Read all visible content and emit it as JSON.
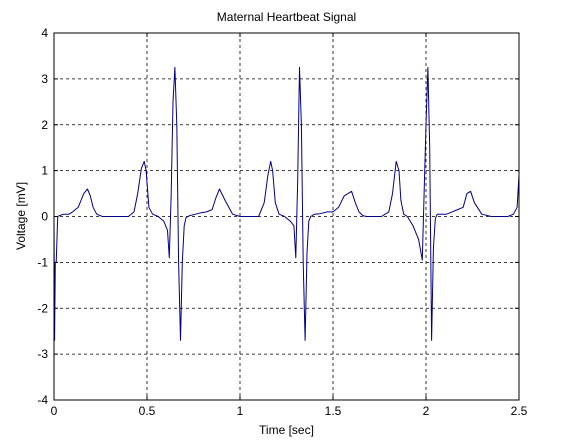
{
  "chart_data": {
    "type": "line",
    "title": "Maternal Heartbeat Signal",
    "xlabel": "Time [sec]",
    "ylabel": "Voltage [mV]",
    "xlim": [
      0,
      2.5
    ],
    "ylim": [
      -4,
      4
    ],
    "xticks": [
      0,
      0.5,
      1,
      1.5,
      2,
      2.5
    ],
    "xtick_labels": [
      "0",
      "0.5",
      "1",
      "1.5",
      "2",
      "2.5"
    ],
    "yticks": [
      -4,
      -3,
      -2,
      -1,
      0,
      1,
      2,
      3,
      4
    ],
    "ytick_labels": [
      "-4",
      "-3",
      "-2",
      "-1",
      "0",
      "1",
      "2",
      "3",
      "4"
    ],
    "grid": true,
    "colors": {
      "line": "#00008b",
      "grid": "#000000",
      "axes": "#000000"
    },
    "series": [
      {
        "x": [
          0,
          0.003,
          0.007,
          0.012,
          0.02,
          0.03,
          0.05,
          0.08,
          0.1,
          0.13,
          0.16,
          0.18,
          0.195,
          0.21,
          0.23,
          0.26,
          0.3,
          0.35,
          0.4,
          0.43,
          0.45,
          0.47,
          0.485,
          0.495,
          0.51,
          0.53,
          0.56,
          0.59,
          0.61,
          0.62,
          0.63,
          0.64,
          0.65,
          0.66,
          0.67,
          0.68,
          0.69,
          0.7,
          0.71,
          0.73,
          0.76,
          0.79,
          0.82,
          0.85,
          0.87,
          0.89,
          0.92,
          0.96,
          1.0,
          1.05,
          1.1,
          1.13,
          1.15,
          1.165,
          1.175,
          1.19,
          1.21,
          1.24,
          1.27,
          1.29,
          1.3,
          1.31,
          1.32,
          1.33,
          1.34,
          1.35,
          1.36,
          1.37,
          1.38,
          1.4,
          1.43,
          1.47,
          1.5,
          1.53,
          1.56,
          1.6,
          1.62,
          1.64,
          1.66,
          1.68,
          1.72,
          1.76,
          1.8,
          1.82,
          1.84,
          1.855,
          1.865,
          1.88,
          1.9,
          1.93,
          1.96,
          1.98,
          1.99,
          2.0,
          2.01,
          2.02,
          2.03,
          2.04,
          2.05,
          2.06,
          2.08,
          2.11,
          2.14,
          2.17,
          2.2,
          2.22,
          2.24,
          2.26,
          2.3,
          2.35,
          2.4,
          2.44,
          2.47,
          2.49,
          2.5
        ],
        "y": [
          -0.1,
          -2.7,
          -1.0,
          -1.0,
          0.0,
          0.02,
          0.05,
          0.05,
          0.1,
          0.2,
          0.5,
          0.6,
          0.45,
          0.2,
          0.05,
          0.0,
          0.0,
          0.0,
          0.0,
          0.1,
          0.5,
          1.05,
          1.2,
          1.0,
          0.2,
          0.05,
          0.0,
          -0.1,
          -0.3,
          -0.9,
          0.5,
          2.5,
          3.25,
          2.0,
          -1.0,
          -2.7,
          -1.0,
          -0.2,
          -0.02,
          0.02,
          0.05,
          0.08,
          0.1,
          0.15,
          0.4,
          0.6,
          0.35,
          0.05,
          0.0,
          0.0,
          0.0,
          0.3,
          0.9,
          1.2,
          1.0,
          0.3,
          0.05,
          0.0,
          -0.1,
          -0.2,
          -0.9,
          0.8,
          3.25,
          2.0,
          -1.0,
          -2.7,
          -0.8,
          -0.1,
          0.0,
          0.05,
          0.06,
          0.1,
          0.1,
          0.2,
          0.45,
          0.55,
          0.3,
          0.1,
          0.02,
          0.0,
          0.0,
          0.0,
          0.1,
          0.5,
          1.2,
          1.0,
          0.35,
          0.05,
          0.0,
          -0.2,
          -0.5,
          -0.95,
          0.5,
          2.0,
          3.25,
          1.5,
          -2.7,
          -0.7,
          -0.05,
          0.05,
          0.05,
          0.05,
          0.1,
          0.15,
          0.2,
          0.5,
          0.55,
          0.3,
          0.05,
          0.0,
          0.0,
          0.0,
          0.05,
          0.2,
          0.9
        ]
      }
    ]
  }
}
